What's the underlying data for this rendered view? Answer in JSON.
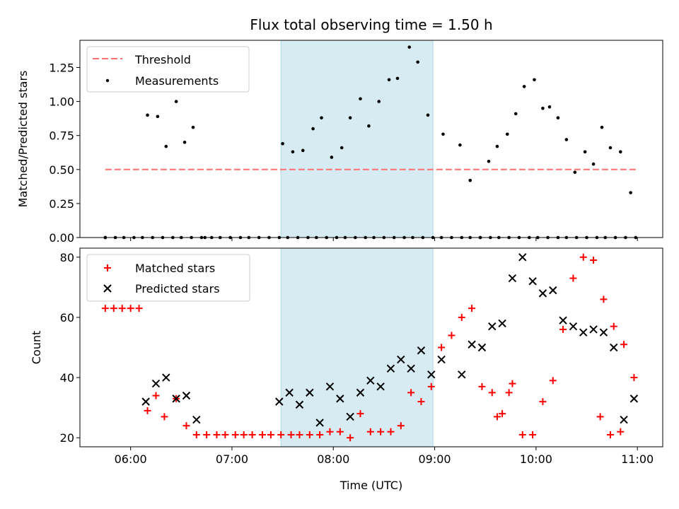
{
  "chart_data": [
    {
      "type": "scatter",
      "title": "Flux total observing time = 1.50 h",
      "xlabel": "",
      "ylabel": "Matched/Predicted stars",
      "xlim": [
        "05:30",
        "11:15"
      ],
      "ylim": [
        0,
        1.45
      ],
      "yticks": [
        0.0,
        0.25,
        0.5,
        0.75,
        1.0,
        1.25
      ],
      "ytick_labels": [
        "0.00",
        "0.25",
        "0.50",
        "0.75",
        "1.00",
        "1.25"
      ],
      "xticks": [
        "06:00",
        "07:00",
        "08:00",
        "09:00",
        "10:00",
        "11:00"
      ],
      "xtick_labels": [
        "",
        "",
        "",
        "",
        "",
        ""
      ],
      "shaded_span": {
        "x0": "07:29",
        "x1": "08:59",
        "color": "#add8e6"
      },
      "legend": {
        "placement": "top-left",
        "entries": [
          "Threshold",
          "Measurements"
        ]
      },
      "series": [
        {
          "name": "Threshold",
          "kind": "dashed-line",
          "color": "#ff7070",
          "x": [
            "05:45",
            "11:00"
          ],
          "y": [
            0.5,
            0.5
          ]
        },
        {
          "name": "Measurements",
          "kind": "dots",
          "color": "#000000",
          "x": [
            "05:45",
            "05:51",
            "05:56",
            "06:02",
            "06:07",
            "06:13",
            "06:19",
            "06:25",
            "06:30",
            "06:36",
            "06:42",
            "06:48",
            "06:53",
            "06:59",
            "07:05",
            "07:10",
            "07:16",
            "07:22",
            "07:28",
            "07:33",
            "07:39",
            "07:45",
            "07:50",
            "07:56",
            "08:02",
            "08:07",
            "08:13",
            "08:19",
            "08:24",
            "08:30",
            "08:36",
            "08:42",
            "08:47",
            "08:53",
            "08:59",
            "09:04",
            "09:10",
            "09:16",
            "09:21",
            "09:27",
            "09:33",
            "09:38",
            "09:44",
            "09:50",
            "09:56",
            "10:01",
            "10:07",
            "10:13",
            "10:18",
            "10:24",
            "10:30",
            "10:36",
            "10:41",
            "10:47",
            "10:53",
            "10:59",
            "05:45",
            "06:10",
            "06:16",
            "06:21",
            "06:27",
            "06:32",
            "06:37",
            "06:44",
            "07:30",
            "07:36",
            "07:42",
            "07:48",
            "07:53",
            "07:59",
            "08:05",
            "08:10",
            "08:16",
            "08:21",
            "08:27",
            "08:33",
            "08:38",
            "08:45",
            "08:50",
            "08:56",
            "09:05",
            "09:15",
            "09:21",
            "09:27",
            "09:32",
            "09:37",
            "09:43",
            "09:48",
            "09:53",
            "09:59",
            "10:04",
            "10:08",
            "10:13",
            "10:18",
            "10:23",
            "10:29",
            "10:34",
            "10:39",
            "10:44",
            "10:50",
            "10:56"
          ],
          "y": [
            0,
            0,
            0,
            0,
            0,
            0,
            0,
            0,
            0,
            0,
            0,
            0,
            0,
            0,
            0,
            0,
            0,
            0,
            0,
            0,
            0,
            0,
            0,
            0,
            0,
            0,
            0,
            0,
            0,
            0,
            0,
            0,
            0,
            0,
            0,
            0,
            0,
            0,
            0,
            0,
            0,
            0,
            0,
            0,
            0,
            0,
            0,
            0,
            0,
            0,
            0,
            0,
            0,
            0,
            0,
            0,
            0,
            0.9,
            0.89,
            0.67,
            1.0,
            0.7,
            0.81,
            0,
            0.69,
            0.63,
            0.64,
            0.8,
            0.88,
            0.59,
            0.66,
            0.88,
            1.02,
            0.82,
            1.0,
            1.16,
            1.17,
            1.4,
            1.29,
            0.9,
            0.76,
            0.68,
            0.42,
            0,
            0.56,
            0.67,
            0.76,
            0.91,
            1.11,
            1.16,
            0.95,
            0.96,
            0.88,
            0.72,
            0.48,
            0.63,
            0.54,
            0.81,
            0.66,
            0.63,
            0.33
          ]
        }
      ]
    },
    {
      "type": "scatter",
      "title": "",
      "xlabel": "Time (UTC)",
      "ylabel": "Count",
      "xlim": [
        "05:30",
        "11:15"
      ],
      "ylim": [
        17,
        83
      ],
      "yticks": [
        20,
        40,
        60,
        80
      ],
      "ytick_labels": [
        "20",
        "40",
        "60",
        "80"
      ],
      "xticks": [
        "06:00",
        "07:00",
        "08:00",
        "09:00",
        "10:00",
        "11:00"
      ],
      "xtick_labels": [
        "06:00",
        "07:00",
        "08:00",
        "09:00",
        "10:00",
        "11:00"
      ],
      "shaded_span": {
        "x0": "07:29",
        "x1": "08:59",
        "color": "#add8e6"
      },
      "legend": {
        "placement": "top-left",
        "entries": [
          "Matched stars",
          "Predicted stars"
        ]
      },
      "series": [
        {
          "name": "Matched stars",
          "kind": "plus",
          "color": "#ff0000",
          "x": [
            "05:45",
            "05:50",
            "05:55",
            "06:00",
            "06:05",
            "06:10",
            "06:15",
            "06:20",
            "06:27",
            "06:33",
            "06:39",
            "06:45",
            "06:51",
            "06:56",
            "07:02",
            "07:07",
            "07:12",
            "07:18",
            "07:23",
            "07:29",
            "07:35",
            "07:40",
            "07:46",
            "07:52",
            "07:58",
            "08:04",
            "08:10",
            "08:16",
            "08:22",
            "08:28",
            "08:34",
            "08:40",
            "08:46",
            "08:52",
            "08:58",
            "09:04",
            "09:10",
            "09:16",
            "09:22",
            "09:28",
            "09:34",
            "09:40",
            "09:46",
            "09:52",
            "09:58",
            "10:04",
            "10:10",
            "10:16",
            "10:22",
            "10:28",
            "10:34",
            "10:40",
            "10:46",
            "10:52",
            "10:58",
            "09:37",
            "09:44",
            "10:38",
            "10:44",
            "10:50"
          ],
          "y": [
            63,
            63,
            63,
            63,
            63,
            29,
            34,
            27,
            33,
            24,
            21,
            21,
            21,
            21,
            21,
            21,
            21,
            21,
            21,
            21,
            21,
            21,
            21,
            21,
            22,
            22,
            20,
            28,
            22,
            22,
            22,
            24,
            35,
            32,
            37,
            50,
            54,
            60,
            63,
            37,
            35,
            28,
            38,
            21,
            21,
            32,
            39,
            56,
            73,
            80,
            79,
            66,
            57,
            51,
            40,
            27,
            35,
            27,
            21,
            22
          ]
        },
        {
          "name": "Predicted stars",
          "kind": "x",
          "color": "#000000",
          "x": [
            "06:09",
            "06:15",
            "06:21",
            "06:27",
            "06:33",
            "06:39",
            "07:28",
            "07:34",
            "07:40",
            "07:46",
            "07:52",
            "07:58",
            "08:04",
            "08:10",
            "08:16",
            "08:22",
            "08:28",
            "08:34",
            "08:40",
            "08:46",
            "08:52",
            "08:58",
            "09:04",
            "09:16",
            "09:22",
            "09:28",
            "09:34",
            "09:40",
            "09:46",
            "09:52",
            "09:58",
            "10:04",
            "10:10",
            "10:16",
            "10:22",
            "10:28",
            "10:34",
            "10:40",
            "10:46",
            "10:52",
            "10:58"
          ],
          "y": [
            32,
            38,
            40,
            33,
            34,
            26,
            32,
            35,
            31,
            35,
            25,
            37,
            33,
            27,
            35,
            39,
            37,
            43,
            46,
            43,
            49,
            41,
            46,
            41,
            51,
            50,
            57,
            58,
            73,
            80,
            72,
            68,
            69,
            59,
            57,
            55,
            56,
            55,
            50,
            26,
            33
          ]
        }
      ]
    }
  ]
}
